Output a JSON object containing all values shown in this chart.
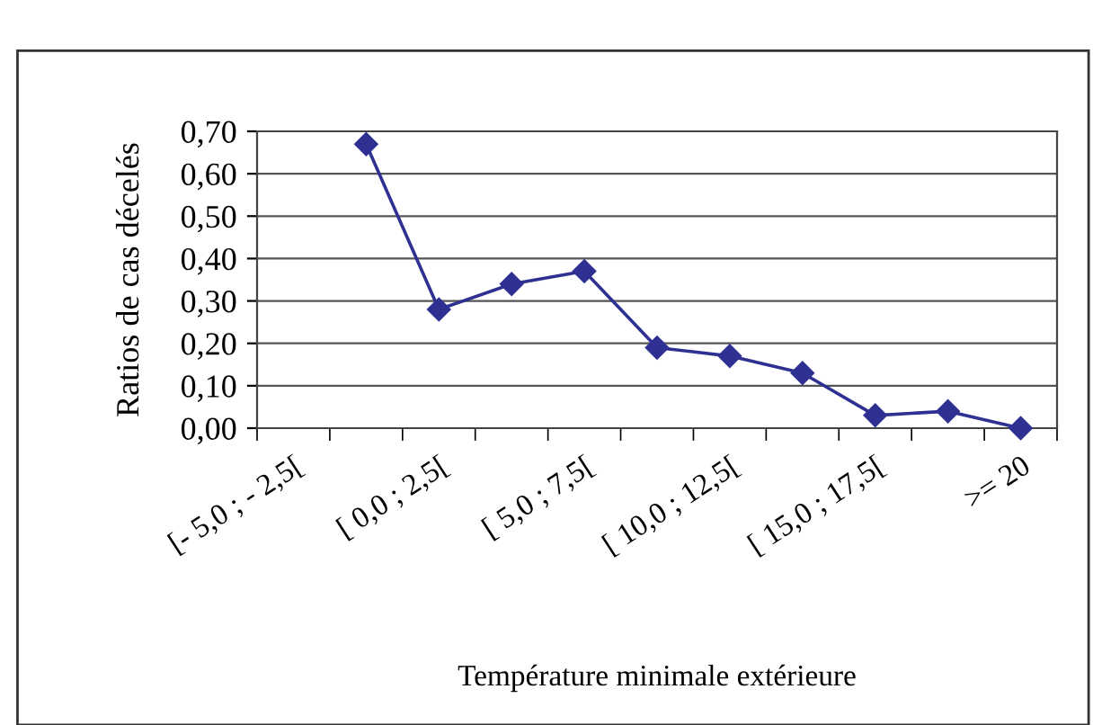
{
  "chart_data": {
    "type": "line",
    "xlabel": "Température minimale extérieure",
    "ylabel": "Ratios de cas décelés",
    "categories": [
      "[- 5,0 ; - 2,5[",
      null,
      "[ 0,0 ; 2,5[",
      null,
      "[ 5,0 ; 7,5[",
      null,
      "[ 10,0 ; 12,5[",
      null,
      "[ 15,0 ; 17,5[",
      null,
      ">= 20"
    ],
    "series": [
      {
        "color": "#2e3192",
        "values": [
          null,
          0.67,
          0.28,
          0.34,
          0.37,
          0.19,
          0.17,
          0.13,
          0.03,
          0.04,
          0.0
        ]
      }
    ],
    "ylim": [
      0,
      0.7
    ],
    "yticks": [
      {
        "value": 0,
        "label": "0,00"
      },
      {
        "value": 0.1,
        "label": "0,10"
      },
      {
        "value": 0.2,
        "label": "0,20"
      },
      {
        "value": 0.3,
        "label": "0,30"
      },
      {
        "value": 0.4,
        "label": "0,40"
      },
      {
        "value": 0.5,
        "label": "0,50"
      },
      {
        "value": 0.6,
        "label": "0,60"
      },
      {
        "value": 0.7,
        "label": "0,70"
      }
    ],
    "grid": "y",
    "marker": "diamond",
    "line_style": "solid",
    "legend": false
  }
}
